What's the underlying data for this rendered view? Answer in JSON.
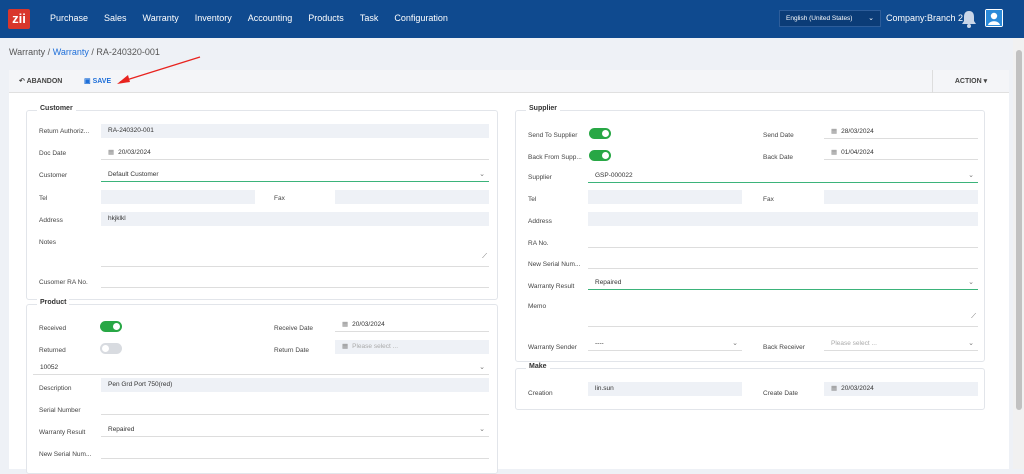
{
  "topbar": {
    "logo": "zii",
    "nav": [
      "Purchase",
      "Sales",
      "Warranty",
      "Inventory",
      "Accounting",
      "Products",
      "Task",
      "Configuration"
    ],
    "language": "English (United States)",
    "company": "Company:Branch 2"
  },
  "breadcrumb": {
    "root": "Warranty",
    "link": "Warranty",
    "current": "RA-240320-001"
  },
  "toolbar": {
    "abandon": "ABANDON",
    "save": "SAVE",
    "action": "ACTION"
  },
  "customer": {
    "title": "Customer",
    "return_auth_label": "Return Authoriz...",
    "return_auth_value": "RA-240320-001",
    "doc_date_label": "Doc Date",
    "doc_date_value": "20/03/2024",
    "customer_label": "Customer",
    "customer_value": "Default Customer",
    "tel_label": "Tel",
    "fax_label": "Fax",
    "address_label": "Address",
    "address_value": "hkjklkl",
    "notes_label": "Notes",
    "ra_no_label": "Cusomer RA No."
  },
  "product": {
    "title": "Product",
    "received_label": "Received",
    "receive_date_label": "Receive Date",
    "receive_date_value": "20/03/2024",
    "returned_label": "Returned",
    "return_date_label": "Return Date",
    "return_date_placeholder": "Please select ...",
    "product_code": "10052",
    "description_label": "Description",
    "description_value": "Pen Grd Port 750(red)",
    "serial_label": "Serial Number",
    "warranty_result_label": "Warranty Result",
    "warranty_result_value": "Repaired",
    "new_serial_label": "New Serial Num..."
  },
  "supplier": {
    "title": "Supplier",
    "send_label": "Send To Supplier",
    "send_date_label": "Send Date",
    "send_date_value": "28/03/2024",
    "back_label": "Back From Supp...",
    "back_date_label": "Back Date",
    "back_date_value": "01/04/2024",
    "supplier_label": "Supplier",
    "supplier_value": "GSP-000022",
    "tel_label": "Tel",
    "fax_label": "Fax",
    "address_label": "Address",
    "ra_label": "RA No.",
    "new_serial_label": "New Serial Num...",
    "warranty_result_label": "Warranty Result",
    "warranty_result_value": "Repaired",
    "memo_label": "Memo",
    "sender_label": "Warranty Sender",
    "sender_value": "----",
    "receiver_label": "Back Receiver",
    "receiver_placeholder": "Please select ..."
  },
  "make": {
    "title": "Make",
    "creation_label": "Creation",
    "creation_value": "lin.sun",
    "create_date_label": "Create Date",
    "create_date_value": "20/03/2024"
  }
}
